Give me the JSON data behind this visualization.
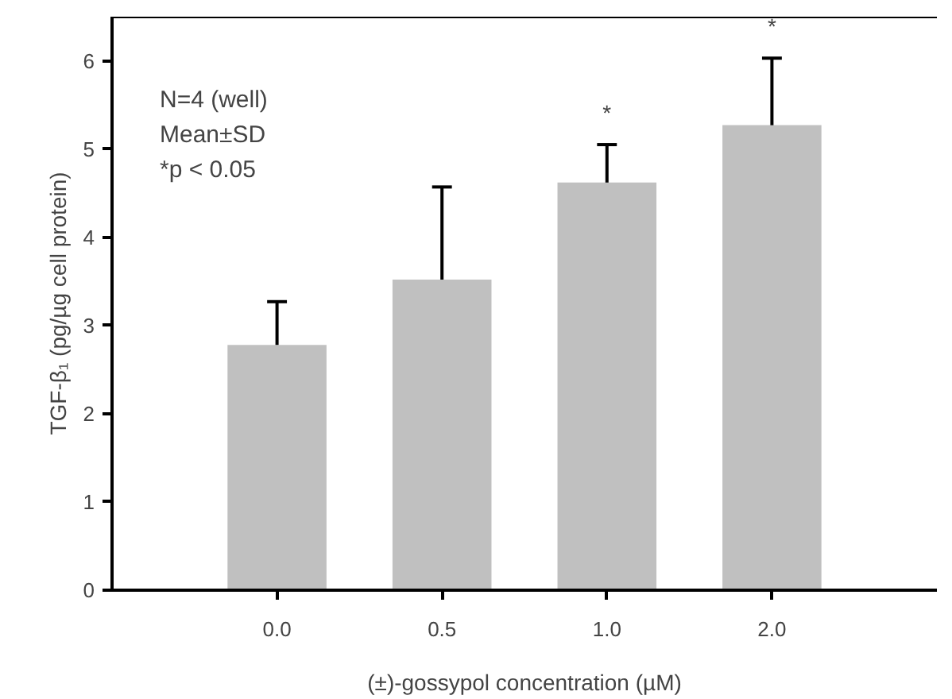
{
  "chart_data": {
    "type": "bar",
    "xlabel": "(±)-gossypol concentration (µM)",
    "ylabel": "TGF-β₁ (pg/µg cell protein)",
    "categories": [
      "0.0",
      "0.5",
      "1.0",
      "2.0"
    ],
    "values": [
      2.78,
      3.52,
      4.62,
      5.27
    ],
    "errors": [
      [
        2.78,
        3.27
      ],
      [
        3.52,
        4.57
      ],
      [
        4.62,
        5.05
      ],
      [
        5.27,
        6.03
      ]
    ],
    "color": "#c0c0c0",
    "ylim": [
      0,
      6.5
    ],
    "yticks": [
      0,
      1,
      2,
      3,
      4,
      5,
      6
    ],
    "grid": false,
    "annotations": [
      "N=4 (well)",
      "Mean±SD",
      "*p < 0.05",
      {
        "text": "*",
        "x": "1.0",
        "y": 5.05
      },
      {
        "text": "*",
        "x": "2.0",
        "y": 6.03
      }
    ]
  }
}
